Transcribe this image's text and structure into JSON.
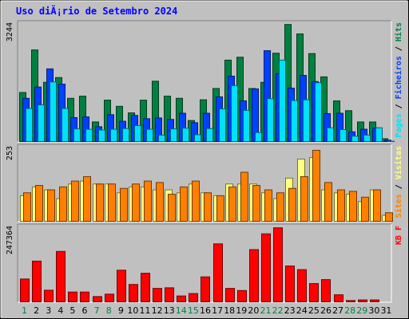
{
  "chart_data": {
    "type": "bar",
    "title": "Uso diÃ¡rio de Setembro 2024",
    "categories": [
      "1",
      "2",
      "3",
      "4",
      "5",
      "6",
      "7",
      "8",
      "9",
      "10",
      "11",
      "12",
      "13",
      "14",
      "15",
      "16",
      "17",
      "18",
      "19",
      "20",
      "21",
      "22",
      "23",
      "24",
      "25",
      "26",
      "27",
      "28",
      "29",
      "30",
      "31"
    ],
    "weekend_days": [
      "1",
      "7",
      "8",
      "14",
      "15",
      "21",
      "22",
      "28",
      "29"
    ],
    "panels": [
      {
        "id": "top",
        "ymax_label": "3244",
        "ymax": 3244,
        "side_label": [
          "Pages",
          "Ficheiros",
          "Hits"
        ],
        "series": [
          {
            "name": "Hits",
            "color": "#008040",
            "values": [
              1370,
              2540,
              1650,
              1780,
              1210,
              1270,
              560,
              1160,
              990,
              810,
              1160,
              1680,
              1270,
              1210,
              600,
              1170,
              1480,
              2260,
              2340,
              1480,
              1650,
              2450,
              3240,
              2980,
              2440,
              1800,
              1140,
              870,
              560,
              560,
              100
            ]
          },
          {
            "name": "Ficheiros",
            "color": "#0040ff",
            "values": [
              1210,
              1520,
              2020,
              1600,
              680,
              700,
              430,
              760,
              580,
              740,
              650,
              670,
              630,
              800,
              540,
              800,
              1250,
              1820,
              1140,
              1470,
              2520,
              1890,
              1490,
              1840,
              1670,
              790,
              800,
              290,
              360,
              400,
              60
            ]
          },
          {
            "name": "Pages",
            "color": "#00e0ff",
            "values": [
              930,
              1030,
              1660,
              930,
              370,
              360,
              340,
              360,
              380,
              460,
              360,
              200,
              370,
              390,
              210,
              380,
              920,
              1560,
              880,
              270,
              1200,
              2260,
              1150,
              1170,
              1640,
              400,
              350,
              170,
              200,
              400,
              30
            ]
          }
        ]
      },
      {
        "id": "middle",
        "ymax_label": "253",
        "ymax": 253,
        "side_label": [
          "Sites",
          "Visitas"
        ],
        "series": [
          {
            "name": "Visitas",
            "color": "#ffff80",
            "values": [
              90,
              120,
              110,
              80,
              130,
              140,
              130,
              130,
              100,
              120,
              120,
              110,
              110,
              100,
              130,
              100,
              90,
              130,
              130,
              130,
              100,
              80,
              150,
              215,
              220,
              110,
              100,
              95,
              70,
              110,
              23
            ]
          },
          {
            "name": "Sites",
            "color": "#ff8000",
            "values": [
              100,
              125,
              110,
              120,
              140,
              155,
              130,
              130,
              115,
              130,
              140,
              135,
              95,
              120,
              140,
              100,
              90,
              120,
              170,
              125,
              110,
              100,
              115,
              155,
              245,
              135,
              110,
              105,
              85,
              110,
              32
            ]
          }
        ]
      },
      {
        "id": "bottom",
        "ymax_label": "247364",
        "ymax": 247364,
        "side_label": [
          "KB F"
        ],
        "series": [
          {
            "name": "KB F",
            "color": "#ff0000",
            "values": [
              78000,
              137000,
              41000,
              169000,
              35000,
              35000,
              20000,
              28000,
              107000,
              60000,
              97000,
              47000,
              49000,
              22000,
              30000,
              85000,
              194000,
              47000,
              40000,
              175000,
              227000,
              247000,
              121000,
              109000,
              63000,
              76000,
              26000,
              7000,
              9000,
              9000,
              0
            ]
          }
        ]
      }
    ]
  }
}
